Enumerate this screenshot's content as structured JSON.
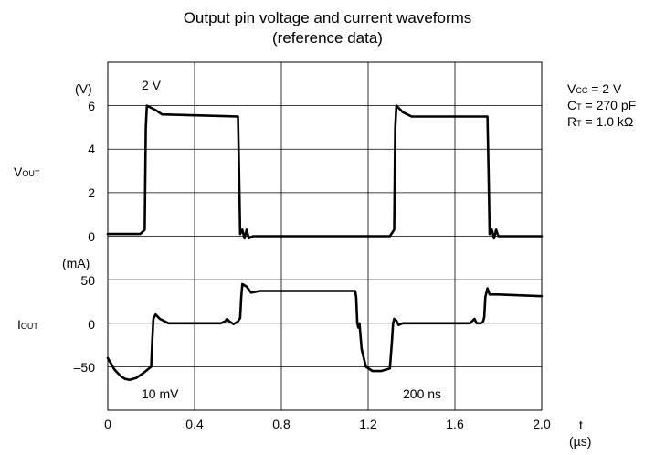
{
  "title_line1": "Output pin voltage and current waveforms",
  "title_line2": "(reference data)",
  "conditions": {
    "vcc_main": "V",
    "vcc_sub": "CC",
    "vcc_val": " = 2 V",
    "ct_main": "C",
    "ct_sub": "T",
    "ct_val": " = 270 pF",
    "rt_main": "R",
    "rt_sub": "T",
    "rt_val": " = 1.0 kΩ"
  },
  "labels": {
    "vout_main": "V",
    "vout_sub": "OUT",
    "iout_main": "I",
    "iout_sub": "OUT",
    "v_unit": "(V)",
    "i_unit": "(mA)",
    "v_scale": "2 V",
    "i_scale": "10 mV",
    "t_scale": "200 ns",
    "x_axis": "t",
    "x_unit": "(µs)"
  },
  "colors": {
    "line": "#000000",
    "grid": "#000000",
    "background": "#ffffff"
  },
  "chart_data": [
    {
      "type": "line",
      "series": [
        {
          "name": "VOUT",
          "x": [
            0.0,
            0.15,
            0.17,
            0.175,
            0.18,
            0.22,
            0.25,
            0.6,
            0.605,
            0.61,
            0.62,
            0.63,
            0.64,
            0.65,
            0.67,
            1.3,
            1.32,
            1.325,
            1.33,
            1.36,
            1.4,
            1.75,
            1.755,
            1.76,
            1.77,
            1.78,
            1.79,
            1.8,
            1.82,
            2.0
          ],
          "values": [
            0.1,
            0.1,
            0.3,
            5.0,
            6.0,
            5.8,
            5.6,
            5.5,
            3.0,
            0.1,
            0.3,
            -0.1,
            0.3,
            -0.1,
            0.0,
            0.0,
            0.3,
            5.0,
            6.0,
            5.7,
            5.5,
            5.5,
            3.0,
            0.1,
            0.3,
            -0.1,
            0.3,
            0.0,
            0.0,
            0.0
          ],
          "ylim": [
            0,
            6
          ],
          "yticks": [
            0,
            2,
            4,
            6
          ]
        },
        {
          "name": "IOUT",
          "x": [
            0.0,
            0.03,
            0.06,
            0.08,
            0.1,
            0.13,
            0.16,
            0.2,
            0.205,
            0.21,
            0.22,
            0.24,
            0.28,
            0.52,
            0.54,
            0.55,
            0.56,
            0.58,
            0.6,
            0.61,
            0.615,
            0.62,
            0.64,
            0.66,
            0.7,
            1.14,
            1.145,
            1.15,
            1.155,
            1.16,
            1.17,
            1.19,
            1.22,
            1.26,
            1.3,
            1.31,
            1.315,
            1.32,
            1.33,
            1.34,
            1.36,
            1.67,
            1.69,
            1.7,
            1.72,
            1.73,
            1.735,
            1.74,
            1.75,
            1.76,
            1.8,
            2.0
          ],
          "values": [
            -40,
            -53,
            -61,
            -64,
            -65,
            -63,
            -58,
            -50,
            -20,
            5,
            10,
            5,
            0,
            0,
            2,
            5,
            2,
            -1,
            2,
            6,
            30,
            45,
            42,
            35,
            37,
            37,
            30,
            0,
            -5,
            0,
            -30,
            -50,
            -55,
            -55,
            -52,
            -20,
            0,
            5,
            3,
            -2,
            0,
            0,
            5,
            0,
            0,
            2,
            7,
            30,
            40,
            33,
            33,
            31
          ],
          "ylim": [
            -50,
            50
          ],
          "yticks": [
            -50,
            0,
            50
          ]
        }
      ],
      "x_ticks": [
        "0",
        "0.4",
        "0.8",
        "1.2",
        "1.6",
        "2.0"
      ],
      "xlim": [
        0,
        2.0
      ],
      "v_ticks": [
        "0",
        "2",
        "4",
        "6"
      ],
      "i_ticks": [
        "–50",
        "0",
        "50"
      ],
      "grid": true
    }
  ]
}
